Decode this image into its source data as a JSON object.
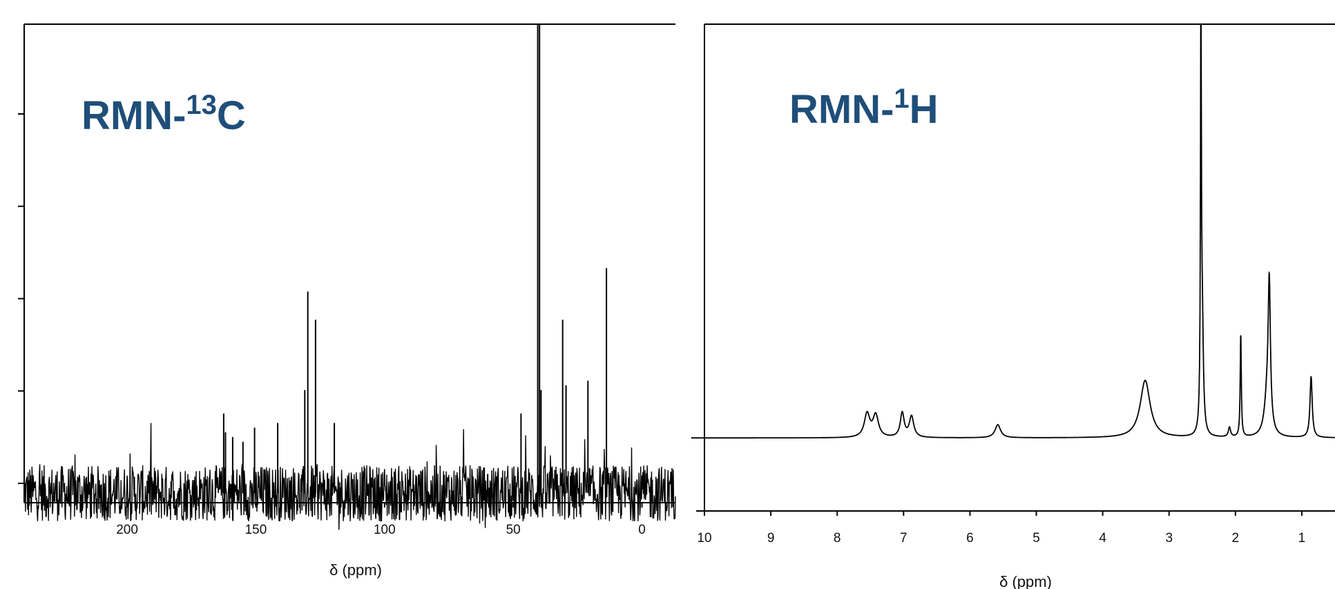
{
  "chart_data": [
    {
      "type": "line",
      "title": "RMN-",
      "title_sup": "13",
      "title_suffix": "C",
      "xlabel": "δ (ppm)",
      "ylabel": "",
      "x_reversed": true,
      "xlim": [
        240,
        -13
      ],
      "ylim": [
        -2,
        100
      ],
      "xticks": [
        200,
        150,
        100,
        50,
        0
      ],
      "yticks_count": 5,
      "grid": false,
      "baseline": 0,
      "noise_amplitude": 6,
      "peaks": [
        {
          "x": 162.5,
          "y": 17
        },
        {
          "x": 161.8,
          "y": 13
        },
        {
          "x": 159.0,
          "y": 12
        },
        {
          "x": 155.0,
          "y": 11
        },
        {
          "x": 150.5,
          "y": 14
        },
        {
          "x": 141.5,
          "y": 15
        },
        {
          "x": 131.0,
          "y": 22
        },
        {
          "x": 129.8,
          "y": 43
        },
        {
          "x": 126.8,
          "y": 37
        },
        {
          "x": 119.5,
          "y": 15
        },
        {
          "x": 47.0,
          "y": 17
        },
        {
          "x": 40.5,
          "y": 100
        },
        {
          "x": 39.8,
          "y": 100
        },
        {
          "x": 39.2,
          "y": 22
        },
        {
          "x": 30.8,
          "y": 37
        },
        {
          "x": 29.5,
          "y": 23
        },
        {
          "x": 21.0,
          "y": 24
        },
        {
          "x": 13.8,
          "y": 48
        }
      ]
    },
    {
      "type": "line",
      "title": "RMN-",
      "title_sup": "1",
      "title_suffix": "H",
      "xlabel": "δ (ppm)",
      "ylabel": "",
      "x_reversed": true,
      "xlim": [
        10,
        0.5
      ],
      "ylim": [
        -15,
        85
      ],
      "xticks": [
        10,
        9,
        8,
        7,
        6,
        5,
        4,
        3,
        2,
        1
      ],
      "grid": false,
      "baseline": 0,
      "peaks": [
        {
          "x": 7.55,
          "y": 4.8,
          "w": 0.05
        },
        {
          "x": 7.42,
          "y": 4.5,
          "w": 0.05
        },
        {
          "x": 7.02,
          "y": 5.0,
          "w": 0.035
        },
        {
          "x": 6.88,
          "y": 4.3,
          "w": 0.04
        },
        {
          "x": 5.58,
          "y": 2.7,
          "w": 0.05
        },
        {
          "x": 3.36,
          "y": 11.8,
          "w": 0.09
        },
        {
          "x": 2.52,
          "y": 85,
          "w": 0.008
        },
        {
          "x": 2.5,
          "y": 22,
          "w": 0.02
        },
        {
          "x": 2.09,
          "y": 2,
          "w": 0.02
        },
        {
          "x": 1.92,
          "y": 21,
          "w": 0.01
        },
        {
          "x": 1.49,
          "y": 28,
          "w": 0.02
        },
        {
          "x": 1.52,
          "y": 8,
          "w": 0.05
        },
        {
          "x": 0.86,
          "y": 12.5,
          "w": 0.02
        }
      ]
    }
  ]
}
